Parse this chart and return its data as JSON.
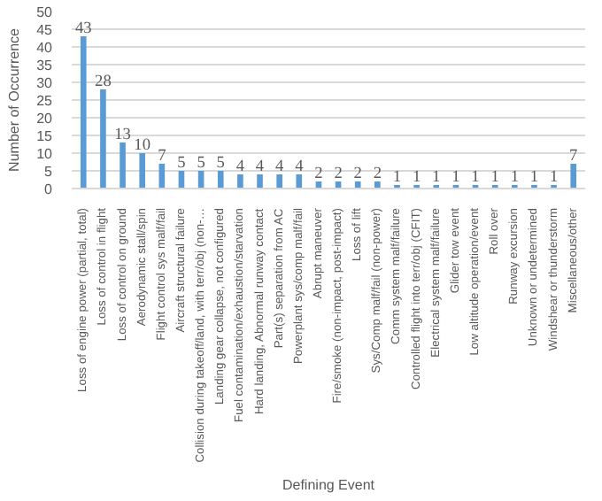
{
  "chart_data": {
    "type": "bar",
    "xlabel": "Defining Event",
    "ylabel": "Number of Occurrence",
    "categories": [
      "Loss of engine power (partial, total)",
      "Loss of control in flight",
      "Loss of control on ground",
      "Aerodynamic stall/spin",
      "Flight control sys malf/fail",
      "Aircraft structural failure",
      "Collision during takeoff/land, with terr/obj (non-…",
      "Landing gear collapse, not configured",
      "Fuel contamination/exhaustion/starvation",
      "Hard landing, Abnormal runway contact",
      "Part(s) separation from AC",
      "Powerplant sys/comp malf/fail",
      "Abrupt maneuver",
      "Fire/smoke (non-impact, post-impact)",
      "Loss of lift",
      "Sys/Comp malf/fail (non-power)",
      "Comm system malf/failure",
      "Controlled flight into terr/obj (CFIT)",
      "Electrical system malf/failure",
      "Glider tow event",
      "Low altitude operation/event",
      "Roll over",
      "Runway excursion",
      "Unknown or undetermined",
      "Windshear or thunderstorm",
      "Miscellaneous/other"
    ],
    "values": [
      43,
      28,
      13,
      10,
      7,
      5,
      5,
      5,
      4,
      4,
      4,
      4,
      2,
      2,
      2,
      2,
      1,
      1,
      1,
      1,
      1,
      1,
      1,
      1,
      1,
      7
    ],
    "color": "#5b9bd5",
    "data_labels": true,
    "grid": "y",
    "ylim": [
      0,
      50
    ],
    "yticks": [
      0,
      5,
      10,
      15,
      20,
      25,
      30,
      35,
      40,
      45,
      50
    ]
  }
}
